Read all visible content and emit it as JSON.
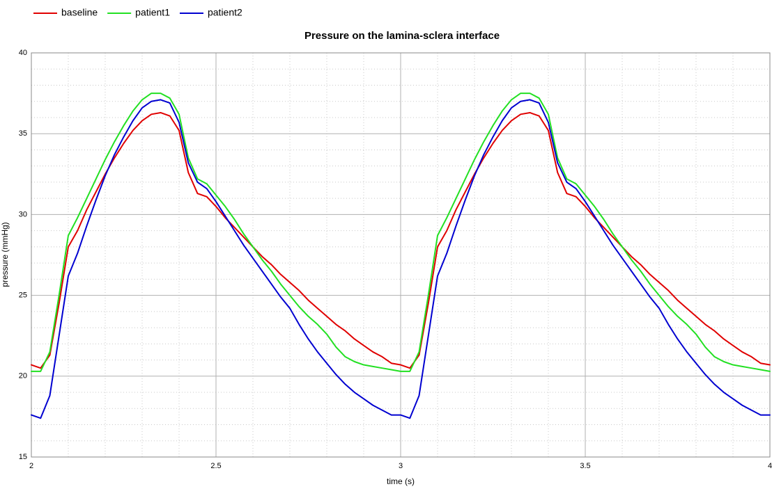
{
  "chart_data": {
    "type": "line",
    "title": "Pressure on the lamina-sclera interface",
    "x_label": "time (s)",
    "y_label": "pressure (mmHg)",
    "x": [
      2,
      2.025,
      2.05,
      2.075,
      2.1,
      2.125,
      2.15,
      2.175,
      2.2,
      2.225,
      2.25,
      2.275,
      2.3,
      2.325,
      2.35,
      2.375,
      2.4,
      2.425,
      2.45,
      2.475,
      2.5,
      2.525,
      2.55,
      2.575,
      2.6,
      2.625,
      2.65,
      2.675,
      2.7,
      2.725,
      2.75,
      2.775,
      2.8,
      2.825,
      2.85,
      2.875,
      2.9,
      2.925,
      2.95,
      2.975,
      3,
      3.025,
      3.05,
      3.075,
      3.1,
      3.125,
      3.15,
      3.175,
      3.2,
      3.225,
      3.25,
      3.275,
      3.3,
      3.325,
      3.35,
      3.375,
      3.4,
      3.425,
      3.45,
      3.475,
      3.5,
      3.525,
      3.55,
      3.575,
      3.6,
      3.625,
      3.65,
      3.675,
      3.7,
      3.725,
      3.75,
      3.775,
      3.8,
      3.825,
      3.85,
      3.875,
      3.9,
      3.925,
      3.95,
      3.975,
      4
    ],
    "series": [
      {
        "name": "baseline",
        "color": "#e00000",
        "values": [
          20.7,
          20.5,
          21.3,
          24.5,
          28.0,
          29.0,
          30.3,
          31.4,
          32.5,
          33.5,
          34.4,
          35.2,
          35.8,
          36.2,
          36.3,
          36.1,
          35.2,
          32.6,
          31.3,
          31.1,
          30.5,
          29.8,
          29.2,
          28.6,
          28.0,
          27.4,
          26.9,
          26.3,
          25.8,
          25.3,
          24.7,
          24.2,
          23.7,
          23.2,
          22.8,
          22.3,
          21.9,
          21.5,
          21.2,
          20.8,
          20.7,
          20.5,
          21.3,
          24.5,
          28.0,
          29.0,
          30.3,
          31.4,
          32.5,
          33.5,
          34.4,
          35.2,
          35.8,
          36.2,
          36.3,
          36.1,
          35.2,
          32.6,
          31.3,
          31.1,
          30.5,
          29.8,
          29.2,
          28.6,
          28.0,
          27.4,
          26.9,
          26.3,
          25.8,
          25.3,
          24.7,
          24.2,
          23.7,
          23.2,
          22.8,
          22.3,
          21.9,
          21.5,
          21.2,
          20.8,
          20.7
        ]
      },
      {
        "name": "patient1",
        "color": "#22e022",
        "values": [
          20.3,
          20.3,
          21.5,
          25.0,
          28.7,
          29.8,
          31.0,
          32.2,
          33.4,
          34.5,
          35.5,
          36.4,
          37.1,
          37.5,
          37.5,
          37.2,
          36.2,
          33.5,
          32.2,
          31.9,
          31.2,
          30.5,
          29.7,
          28.8,
          28.0,
          27.2,
          26.5,
          25.7,
          25.0,
          24.3,
          23.7,
          23.2,
          22.6,
          21.8,
          21.2,
          20.9,
          20.7,
          20.6,
          20.5,
          20.4,
          20.3,
          20.3,
          21.5,
          25.0,
          28.7,
          29.8,
          31.0,
          32.2,
          33.4,
          34.5,
          35.5,
          36.4,
          37.1,
          37.5,
          37.5,
          37.2,
          36.2,
          33.5,
          32.2,
          31.9,
          31.2,
          30.5,
          29.7,
          28.8,
          28.0,
          27.2,
          26.5,
          25.7,
          25.0,
          24.3,
          23.7,
          23.2,
          22.6,
          21.8,
          21.2,
          20.9,
          20.7,
          20.6,
          20.5,
          20.4,
          20.3
        ]
      },
      {
        "name": "patient2",
        "color": "#0000d0",
        "values": [
          17.6,
          17.4,
          18.8,
          22.5,
          26.2,
          27.6,
          29.3,
          30.9,
          32.4,
          33.7,
          34.8,
          35.8,
          36.6,
          37.0,
          37.1,
          36.9,
          35.7,
          33.2,
          32.0,
          31.6,
          30.8,
          29.9,
          29.0,
          28.1,
          27.3,
          26.5,
          25.7,
          24.9,
          24.2,
          23.2,
          22.3,
          21.5,
          20.8,
          20.1,
          19.5,
          19.0,
          18.6,
          18.2,
          17.9,
          17.6,
          17.6,
          17.4,
          18.8,
          22.5,
          26.2,
          27.6,
          29.3,
          30.9,
          32.4,
          33.7,
          34.8,
          35.8,
          36.6,
          37.0,
          37.1,
          36.9,
          35.7,
          33.2,
          32.0,
          31.6,
          30.8,
          29.9,
          29.0,
          28.1,
          27.3,
          26.5,
          25.7,
          24.9,
          24.2,
          23.2,
          22.3,
          21.5,
          20.8,
          20.1,
          19.5,
          19.0,
          18.6,
          18.2,
          17.9,
          17.6,
          17.6
        ]
      }
    ],
    "xlim": [
      2,
      4
    ],
    "ylim": [
      15,
      40
    ],
    "xticks": [
      2,
      2.5,
      3,
      3.5,
      4
    ],
    "yticks": [
      15,
      20,
      25,
      30,
      35,
      40
    ],
    "grid": true,
    "legend": "top-left"
  }
}
